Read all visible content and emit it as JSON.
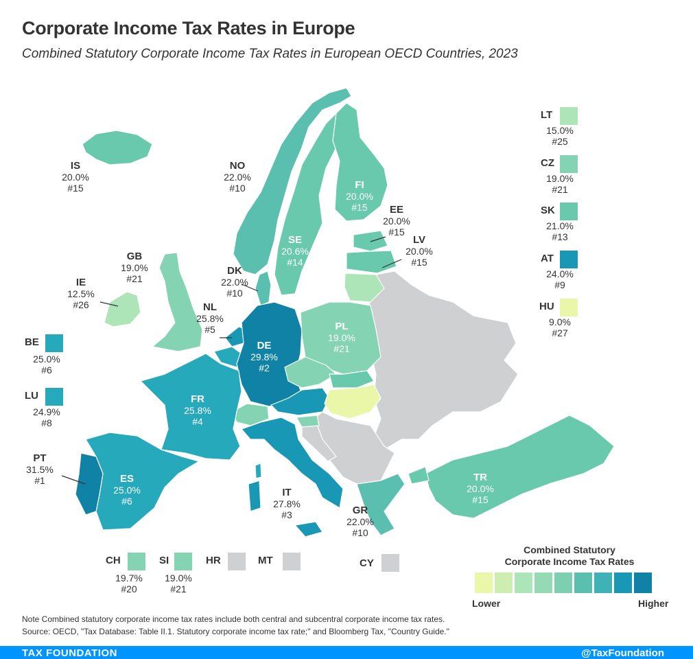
{
  "title": "Corporate Income Tax Rates in Europe",
  "subtitle": "Combined Statutory Corporate Income Tax Rates in European OECD Countries, 2023",
  "colors": {
    "r9": "#eaf6a8",
    "r12": "#cdeeb0",
    "r15": "#aee5b8",
    "r19": "#84d4b3",
    "r20": "#69c9ad",
    "r22": "#5bbfb0",
    "r25": "#26a9bb",
    "r28": "#1998b5",
    "r30": "#0f82a6",
    "gray": "#cfd0d2",
    "footer": "#0094ff"
  },
  "countries": [
    {
      "code": "IS",
      "rate": "20.0%",
      "rank": "#15"
    },
    {
      "code": "NO",
      "rate": "22.0%",
      "rank": "#10"
    },
    {
      "code": "FI",
      "rate": "20.0%",
      "rank": "#15"
    },
    {
      "code": "EE",
      "rate": "20.0%",
      "rank": "#15"
    },
    {
      "code": "LV",
      "rate": "20.0%",
      "rank": "#15"
    },
    {
      "code": "SE",
      "rate": "20.6%",
      "rank": "#14"
    },
    {
      "code": "GB",
      "rate": "19.0%",
      "rank": "#21"
    },
    {
      "code": "DK",
      "rate": "22.0%",
      "rank": "#10"
    },
    {
      "code": "IE",
      "rate": "12.5%",
      "rank": "#26"
    },
    {
      "code": "NL",
      "rate": "25.8%",
      "rank": "#5"
    },
    {
      "code": "PL",
      "rate": "19.0%",
      "rank": "#21"
    },
    {
      "code": "DE",
      "rate": "29.8%",
      "rank": "#2"
    },
    {
      "code": "FR",
      "rate": "25.8%",
      "rank": "#4"
    },
    {
      "code": "PT",
      "rate": "31.5%",
      "rank": "#1"
    },
    {
      "code": "ES",
      "rate": "25.0%",
      "rank": "#6"
    },
    {
      "code": "IT",
      "rate": "27.8%",
      "rank": "#3"
    },
    {
      "code": "GR",
      "rate": "22.0%",
      "rank": "#10"
    },
    {
      "code": "TR",
      "rate": "20.0%",
      "rank": "#15"
    }
  ],
  "side_legend": [
    {
      "code": "LT",
      "rate": "15.0%",
      "rank": "#25",
      "color": "#aee5b8"
    },
    {
      "code": "CZ",
      "rate": "19.0%",
      "rank": "#21",
      "color": "#84d4b3"
    },
    {
      "code": "SK",
      "rate": "21.0%",
      "rank": "#13",
      "color": "#69c9ad"
    },
    {
      "code": "AT",
      "rate": "24.0%",
      "rank": "#9",
      "color": "#1998b5"
    },
    {
      "code": "HU",
      "rate": "9.0%",
      "rank": "#27",
      "color": "#eaf6a8"
    }
  ],
  "left_legend": [
    {
      "code": "BE",
      "rate": "25.0%",
      "rank": "#6",
      "color": "#26a9bb"
    },
    {
      "code": "LU",
      "rate": "24.9%",
      "rank": "#8",
      "color": "#26a9bb"
    }
  ],
  "bottom_legend": [
    {
      "code": "CH",
      "rate": "19.7%",
      "rank": "#20",
      "color": "#84d4b3"
    },
    {
      "code": "SI",
      "rate": "19.0%",
      "rank": "#21",
      "color": "#84d4b3"
    },
    {
      "code": "HR",
      "rate": "",
      "rank": "",
      "color": "#cfd0d2"
    },
    {
      "code": "MT",
      "rate": "",
      "rank": "",
      "color": "#cfd0d2"
    },
    {
      "code": "CY",
      "rate": "",
      "rank": "",
      "color": "#cfd0d2"
    }
  ],
  "legend": {
    "title_line1": "Combined Statutory",
    "title_line2": "Corporate Income Tax Rates",
    "low": "Lower",
    "high": "Higher",
    "scale_colors": [
      "#eaf6a8",
      "#cdeeb0",
      "#aee5b8",
      "#93dab5",
      "#7ccfb1",
      "#5bbfb0",
      "#3fb2b7",
      "#1998b5",
      "#0f82a6"
    ]
  },
  "note_line1": "Note Combined statutory corporate income tax rates include both central and subcentral corporate income tax rates.",
  "note_line2": "Source: OECD, \"Tax Database: Table II.1. Statutory corporate income tax rate;\" and Bloomberg Tax, \"Country Guide.\"",
  "footer_left": "TAX FOUNDATION",
  "footer_right": "@TaxFoundation"
}
